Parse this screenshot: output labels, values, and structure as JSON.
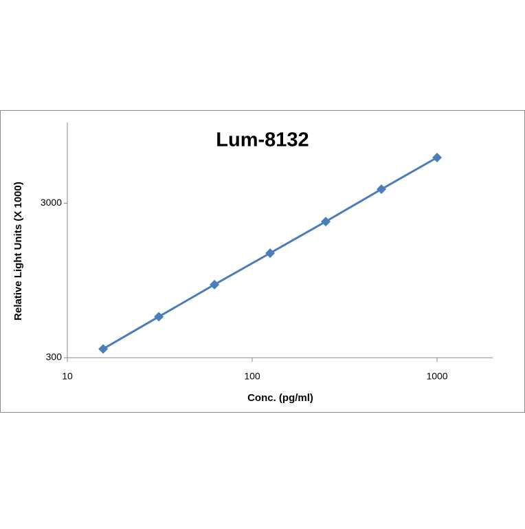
{
  "chart_data": {
    "type": "line",
    "title": "Lum-8132",
    "x_label": "Conc. (pg/ml)",
    "y_label": "Relative Light Units (X 1000)",
    "x": [
      15.625,
      31.25,
      62.5,
      125,
      250,
      500,
      1000
    ],
    "series": [
      {
        "name": "Lum-8132",
        "color": "#4a7ebb",
        "values": [
          342,
          553,
          892,
          1426,
          2283,
          3697,
          5925
        ]
      }
    ],
    "xlim": [
      10,
      2000
    ],
    "ylim": [
      300,
      10000
    ],
    "xticks": [
      10,
      100,
      1000
    ],
    "yticks": [
      300,
      3000
    ],
    "xscale": "log",
    "yscale": "log",
    "grid": false
  }
}
